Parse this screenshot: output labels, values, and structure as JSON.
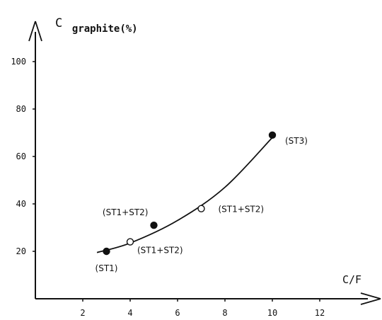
{
  "chart_data": {
    "type": "scatter",
    "xlabel": "C/F",
    "ylabel_main": "C",
    "ylabel_sub": "graphite(%)",
    "xlim": [
      0,
      14
    ],
    "ylim": [
      0,
      110
    ],
    "x_ticks": [
      2,
      4,
      6,
      8,
      10,
      12
    ],
    "y_ticks": [
      20,
      40,
      60,
      80,
      100
    ],
    "grid": false,
    "series": [
      {
        "marker": "filled",
        "x": [
          3,
          5,
          10
        ],
        "y": [
          20,
          31,
          69
        ]
      },
      {
        "marker": "open",
        "x": [
          4,
          7
        ],
        "y": [
          24,
          38
        ]
      }
    ],
    "fit_curve": {
      "x": [
        2.6,
        4,
        6,
        8,
        10
      ],
      "y": [
        19.5,
        23.5,
        33,
        47,
        68
      ]
    },
    "annotations": [
      {
        "text": "(ST1)",
        "x": 3,
        "y": 20
      },
      {
        "text": "(ST1+ST2)",
        "x": 4,
        "y": 24
      },
      {
        "text": "(ST1+ST2)",
        "x": 5,
        "y": 31
      },
      {
        "text": "(ST1+ST2)",
        "x": 7,
        "y": 38
      },
      {
        "text": "(ST3)",
        "x": 10,
        "y": 69
      }
    ]
  }
}
